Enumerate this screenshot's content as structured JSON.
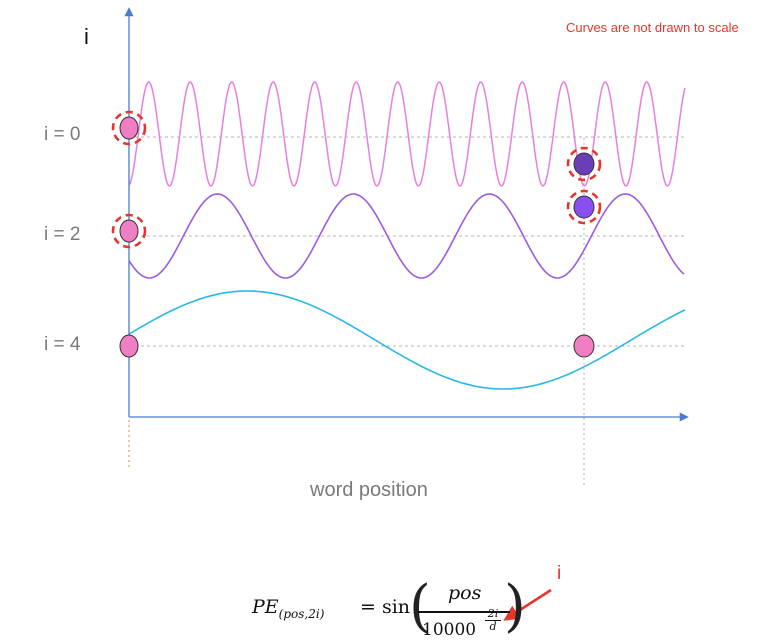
{
  "note": "Curves are not drawn to scale",
  "y_axis_label": "i",
  "x_axis_label": "word position",
  "rows": [
    {
      "label": "i = 0"
    },
    {
      "label": "i = 2"
    },
    {
      "label": "i = 4"
    }
  ],
  "formula": {
    "lhs": "PE",
    "lhs_sub": "(pos,2i)",
    "eq": "= sin",
    "numerator": "pos",
    "base": "10000",
    "exp_num": "2i",
    "exp_den": "d"
  },
  "pointer_label": "i",
  "colors": {
    "row0_wave": "#e77fde",
    "row2_wave": "#9b5ce0",
    "row4_wave": "#2bb7e6",
    "axis": "#4a7bd1",
    "highlight": "#e8352b",
    "dot_pink": "#f07ec2",
    "dot_purple": "#6a3fb5"
  }
}
